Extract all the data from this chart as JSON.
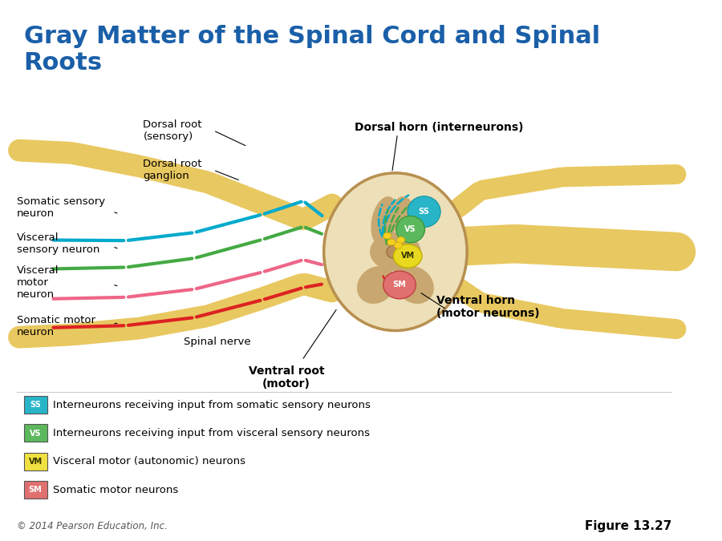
{
  "title": "Gray Matter of the Spinal Cord and Spinal\nRoots",
  "title_color": "#1a5fa8",
  "title_fontsize": 22,
  "bg_color": "#ffffff",
  "fig_width": 9.0,
  "fig_height": 6.75,
  "legend_items": [
    {
      "label": "SS",
      "box_color": "#29b5c8",
      "text": "Interneurons receiving input from somatic sensory neurons"
    },
    {
      "label": "VS",
      "box_color": "#5cb85c",
      "text": "Interneurons receiving input from visceral sensory neurons"
    },
    {
      "label": "VM",
      "box_color": "#f0e040",
      "text": "Visceral motor (autonomic) neurons"
    },
    {
      "label": "SM",
      "box_color": "#e07070",
      "text": "Somatic motor neurons"
    }
  ],
  "footer_left": "© 2014 Pearson Education, Inc.",
  "footer_right": "Figure 13.27",
  "nerve_colors": {
    "yellow": "#f5d020",
    "blue": "#00aacc",
    "green": "#44aa44",
    "red": "#dd2222",
    "pink": "#ee6688"
  }
}
